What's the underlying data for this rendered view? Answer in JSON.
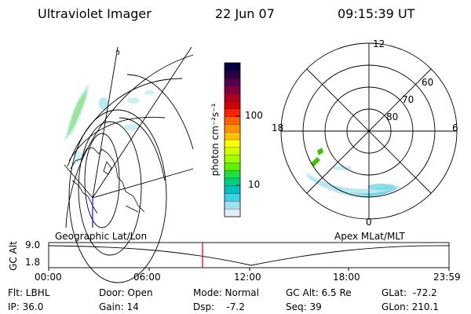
{
  "header": {
    "title": "Ultraviolet Imager",
    "date": "22 Jun 07",
    "time": "09:15:39 UT"
  },
  "colorbar": {
    "unit_label": "photon cm⁻²s⁻¹",
    "ticks": [
      "100",
      "10"
    ],
    "colors": [
      "#000040",
      "#2a0040",
      "#500050",
      "#800040",
      "#b00020",
      "#d00000",
      "#ff2000",
      "#ff6000",
      "#ff9000",
      "#ffc000",
      "#ffff00",
      "#d0ff00",
      "#a0ff00",
      "#60f000",
      "#20e040",
      "#00d080",
      "#00c0c0",
      "#40d0e0",
      "#a0e0f0",
      "#e0f0f8"
    ]
  },
  "polar": {
    "mlt_labels": {
      "top": "12",
      "left": "18",
      "right": "6",
      "bottom": "0"
    },
    "lat_labels": [
      "60",
      "70",
      "80"
    ]
  },
  "timeline": {
    "left_label": "Geographic Lat/Lon",
    "right_label": "Apex MLat/MLT",
    "axis_title": "GC Alt",
    "y_ticks": [
      "9.0",
      "1.8"
    ],
    "x_ticks": [
      "00:00",
      "06:00",
      "12:00",
      "18:00",
      "23:59"
    ],
    "marker_color": "#d00000"
  },
  "footer": {
    "filter": "Flt: LBHL",
    "ip": "IP: 36.0",
    "door": "Door: Open",
    "gain": "Gain: 14",
    "mode": "Mode: Normal",
    "dsp": "Dsp:    -7.2",
    "gcalt": "GC Alt: 6.5 Re",
    "seq": "Seq: 39",
    "glat": "GLat:  -72.2",
    "glon": "GLon: 210.1"
  }
}
